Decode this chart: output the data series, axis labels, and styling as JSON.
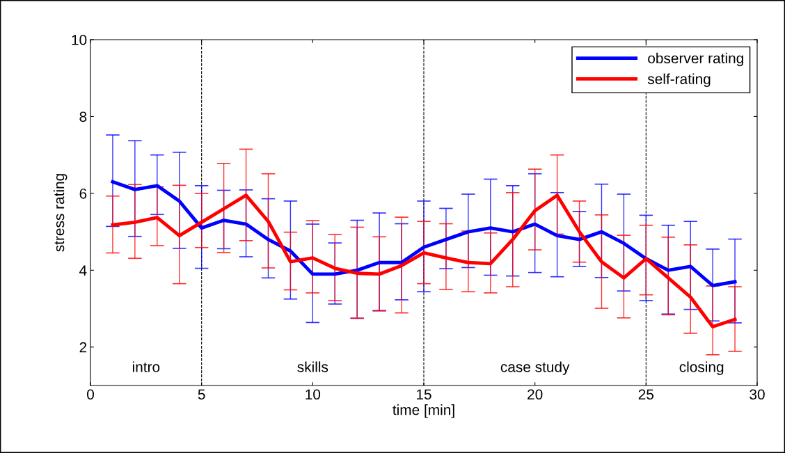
{
  "chart_data": {
    "type": "line",
    "xlabel": "time [min]",
    "ylabel": "stress rating",
    "x": [
      1,
      2,
      3,
      4,
      5,
      6,
      7,
      8,
      9,
      10,
      11,
      12,
      13,
      14,
      15,
      16,
      17,
      18,
      19,
      20,
      21,
      22,
      23,
      24,
      25,
      26,
      27,
      28,
      29
    ],
    "xlim": [
      0,
      30
    ],
    "xticks": [
      0,
      5,
      10,
      15,
      20,
      25,
      30
    ],
    "ylim": [
      1,
      10
    ],
    "yticks": [
      2,
      4,
      6,
      8,
      10
    ],
    "grid": false,
    "legend": "top right",
    "marker": "none",
    "line_style": "solid",
    "series": [
      {
        "name": "observer rating",
        "color": "#0000ff",
        "values": [
          6.3,
          6.1,
          6.2,
          5.8,
          5.1,
          5.3,
          5.2,
          4.8,
          4.5,
          3.9,
          3.9,
          4.0,
          4.2,
          4.2,
          4.6,
          4.8,
          5.0,
          5.1,
          5.0,
          5.2,
          4.9,
          4.8,
          5.0,
          4.7,
          4.3,
          4.0,
          4.1,
          3.6,
          3.7
        ],
        "errors": [
          [
            5.14,
            7.52
          ],
          [
            4.88,
            7.37
          ],
          [
            5.45,
            7.0
          ],
          [
            4.57,
            7.07
          ],
          [
            4.05,
            6.2
          ],
          [
            4.56,
            6.08
          ],
          [
            4.35,
            6.09
          ],
          [
            3.8,
            5.86
          ],
          [
            3.25,
            5.8
          ],
          [
            2.64,
            5.2
          ],
          [
            3.12,
            4.71
          ],
          [
            2.75,
            5.3
          ],
          [
            2.95,
            5.49
          ],
          [
            3.23,
            5.21
          ],
          [
            3.44,
            5.8
          ],
          [
            4.04,
            5.61
          ],
          [
            4.07,
            5.98
          ],
          [
            3.87,
            6.37
          ],
          [
            3.85,
            6.2
          ],
          [
            3.94,
            6.51
          ],
          [
            3.83,
            6.02
          ],
          [
            4.1,
            5.53
          ],
          [
            3.81,
            6.24
          ],
          [
            3.46,
            5.98
          ],
          [
            3.21,
            5.43
          ],
          [
            2.86,
            5.17
          ],
          [
            2.98,
            5.27
          ],
          [
            2.68,
            4.55
          ],
          [
            2.63,
            4.81
          ]
        ]
      },
      {
        "name": "self-rating",
        "color": "#ff0000",
        "values": [
          5.18,
          5.25,
          5.37,
          4.9,
          5.25,
          5.6,
          5.95,
          5.27,
          4.22,
          4.32,
          4.05,
          3.92,
          3.9,
          4.12,
          4.45,
          4.32,
          4.2,
          4.17,
          4.8,
          5.55,
          5.95,
          5.0,
          4.22,
          3.8,
          4.3,
          3.8,
          3.3,
          2.53,
          2.72
        ],
        "errors": [
          [
            4.45,
            5.93
          ],
          [
            4.31,
            6.23
          ],
          [
            4.64,
            6.17
          ],
          [
            3.65,
            6.21
          ],
          [
            4.59,
            6.0
          ],
          [
            4.46,
            6.78
          ],
          [
            4.77,
            7.15
          ],
          [
            4.06,
            6.51
          ],
          [
            3.49,
            4.99
          ],
          [
            3.41,
            5.29
          ],
          [
            3.21,
            4.93
          ],
          [
            2.75,
            5.12
          ],
          [
            2.94,
            4.87
          ],
          [
            2.89,
            5.38
          ],
          [
            3.65,
            5.27
          ],
          [
            3.5,
            5.21
          ],
          [
            3.44,
            5.02
          ],
          [
            3.41,
            4.97
          ],
          [
            3.57,
            6.02
          ],
          [
            4.53,
            6.63
          ],
          [
            4.94,
            7.0
          ],
          [
            4.21,
            5.8
          ],
          [
            3.01,
            5.44
          ],
          [
            2.76,
            4.91
          ],
          [
            3.36,
            5.17
          ],
          [
            2.84,
            4.86
          ],
          [
            2.36,
            4.66
          ],
          [
            1.8,
            3.59
          ],
          [
            1.89,
            3.57
          ]
        ]
      }
    ],
    "ref_lines": [
      {
        "axis": "x",
        "value": 5,
        "color": "#000000",
        "line_style": "dashed"
      },
      {
        "axis": "x",
        "value": 15,
        "color": "#000000",
        "line_style": "dashed"
      },
      {
        "axis": "x",
        "value": 25,
        "color": "#000000",
        "line_style": "dashed"
      }
    ],
    "annotations": [
      "intro",
      "skills",
      "case study",
      "closing"
    ]
  }
}
